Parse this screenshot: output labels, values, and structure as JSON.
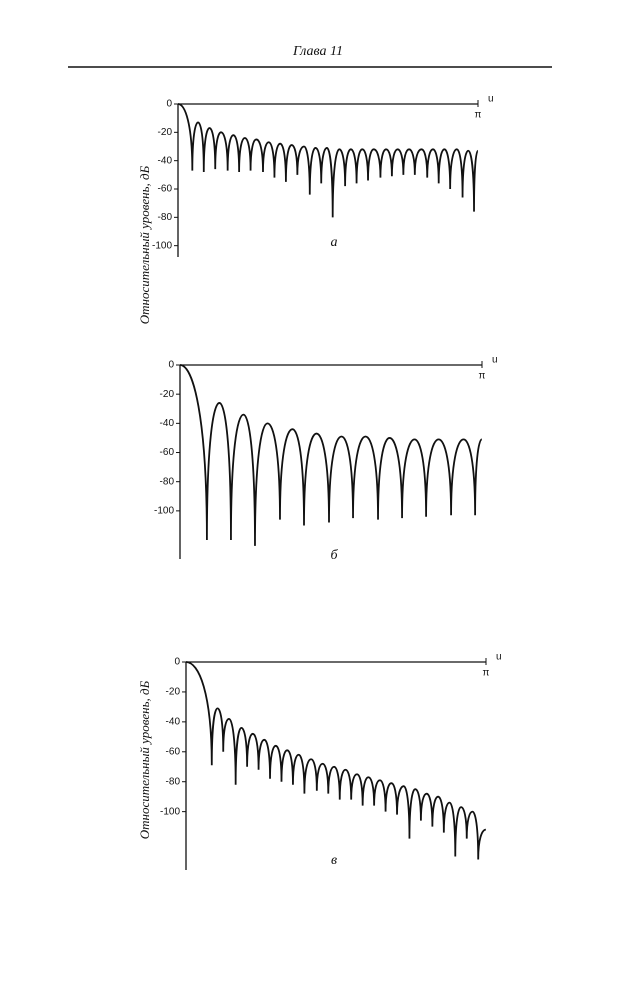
{
  "header": {
    "title": "Глава 11"
  },
  "chart_data": [
    {
      "type": "line",
      "label": "а",
      "ylabel": "Относительный уровень, дБ",
      "x_label": "u",
      "color": "#111",
      "xlim": [
        0,
        3.1416
      ],
      "xticks": [
        {
          "value": 3.1416,
          "label": "π"
        }
      ],
      "ylim": [
        -108,
        0
      ],
      "yticks": [
        0,
        -20,
        -40,
        -60,
        -80,
        -100
      ],
      "x": [
        0,
        0.15,
        0.21,
        0.27,
        0.33,
        0.39,
        0.45,
        0.52,
        0.58,
        0.64,
        0.7,
        0.76,
        0.82,
        0.89,
        0.95,
        1.01,
        1.07,
        1.13,
        1.19,
        1.25,
        1.32,
        1.38,
        1.44,
        1.5,
        1.56,
        1.62,
        1.69,
        1.75,
        1.81,
        1.87,
        1.93,
        1.99,
        2.05,
        2.12,
        2.18,
        2.24,
        2.3,
        2.36,
        2.42,
        2.48,
        2.55,
        2.61,
        2.67,
        2.73,
        2.79,
        2.85,
        2.92,
        2.98,
        3.04,
        3.1,
        3.14
      ],
      "values": [
        0,
        -47,
        -13,
        -48,
        -17,
        -46,
        -20,
        -47,
        -22,
        -48,
        -24,
        -47,
        -25,
        -48,
        -27,
        -52,
        -28,
        -55,
        -29,
        -50,
        -30,
        -64,
        -31,
        -56,
        -31,
        -80,
        -32,
        -58,
        -32,
        -56,
        -32,
        -54,
        -32,
        -52,
        -32,
        -51,
        -32,
        -50,
        -32,
        -50,
        -32,
        -52,
        -32,
        -56,
        -32,
        -60,
        -32,
        -66,
        -33,
        -76,
        -33
      ]
    },
    {
      "type": "line",
      "label": "б",
      "color": "#111",
      "xlim": [
        0,
        3.1416
      ],
      "x_label": "u",
      "xticks": [
        {
          "value": 3.1416,
          "label": "π"
        }
      ],
      "ylim": [
        -133,
        0
      ],
      "yticks": [
        0,
        -20,
        -40,
        -60,
        -80,
        -100
      ],
      "x": [
        0,
        0.28,
        0.41,
        0.53,
        0.66,
        0.78,
        0.91,
        1.04,
        1.17,
        1.29,
        1.42,
        1.55,
        1.68,
        1.8,
        1.93,
        2.06,
        2.18,
        2.31,
        2.44,
        2.56,
        2.69,
        2.82,
        2.95,
        3.07,
        3.14
      ],
      "values": [
        0,
        -120,
        -26,
        -120,
        -34,
        -124,
        -40,
        -106,
        -44,
        -110,
        -47,
        -108,
        -49,
        -105,
        -49,
        -106,
        -50,
        -105,
        -51,
        -104,
        -51,
        -103,
        -51,
        -103,
        -51
      ]
    },
    {
      "type": "line",
      "label": "в",
      "ylabel": "Относительный уровень, дБ",
      "x_label": "u",
      "color": "#111",
      "xlim": [
        0,
        3.1416
      ],
      "xticks": [
        {
          "value": 3.1416,
          "label": "π"
        }
      ],
      "ylim": [
        -139,
        0
      ],
      "yticks": [
        0,
        -20,
        -40,
        -60,
        -80,
        -100
      ],
      "x": [
        0,
        0.27,
        0.33,
        0.39,
        0.45,
        0.52,
        0.58,
        0.64,
        0.7,
        0.76,
        0.82,
        0.88,
        0.94,
        1.0,
        1.06,
        1.12,
        1.18,
        1.24,
        1.31,
        1.37,
        1.43,
        1.49,
        1.55,
        1.61,
        1.67,
        1.73,
        1.79,
        1.85,
        1.91,
        1.97,
        2.03,
        2.09,
        2.15,
        2.21,
        2.28,
        2.34,
        2.4,
        2.46,
        2.52,
        2.58,
        2.64,
        2.7,
        2.76,
        2.82,
        2.88,
        2.94,
        3.0,
        3.06,
        3.14
      ],
      "values": [
        0,
        -69,
        -31,
        -60,
        -38,
        -82,
        -44,
        -70,
        -48,
        -72,
        -52,
        -78,
        -56,
        -80,
        -59,
        -82,
        -62,
        -88,
        -65,
        -86,
        -68,
        -88,
        -70,
        -92,
        -72,
        -92,
        -75,
        -96,
        -77,
        -96,
        -79,
        -100,
        -81,
        -102,
        -83,
        -118,
        -85,
        -106,
        -88,
        -110,
        -90,
        -114,
        -94,
        -130,
        -97,
        -118,
        -100,
        -132,
        -112
      ]
    }
  ]
}
